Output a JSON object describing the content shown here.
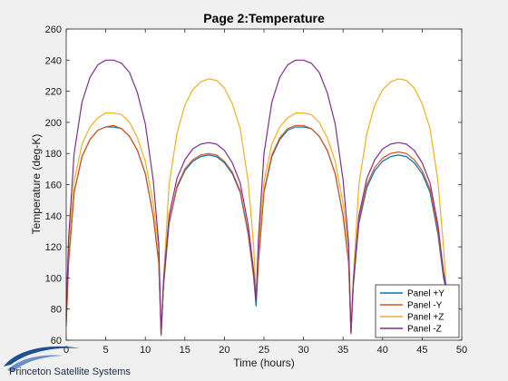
{
  "logo": {
    "text": "Princeton Satellite Systems",
    "color": "#1f4f8f"
  },
  "chart_data": {
    "type": "line",
    "title": "Page 2:Temperature",
    "xlabel": "Time (hours)",
    "ylabel": "Temperature (deg-K)",
    "xlim": [
      0,
      50
    ],
    "ylim": [
      60,
      260
    ],
    "xticks": [
      0,
      5,
      10,
      15,
      20,
      25,
      30,
      35,
      40,
      45,
      50
    ],
    "yticks": [
      60,
      80,
      100,
      120,
      140,
      160,
      180,
      200,
      220,
      240,
      260
    ],
    "grid": false,
    "legend_position": "bottom-right",
    "series": [
      {
        "name": "Panel +Y",
        "color": "#0072BD",
        "x": [
          0,
          0.3,
          1,
          2,
          3,
          4,
          5,
          6,
          7,
          8,
          9,
          10,
          11,
          11.7,
          12,
          12.3,
          13,
          14,
          15,
          16,
          17,
          18,
          19,
          20,
          21,
          22,
          23,
          23.7,
          24,
          24.3,
          25,
          26,
          27,
          28,
          29,
          30,
          31,
          32,
          33,
          34,
          35,
          35.7,
          36,
          36.3,
          37,
          38,
          39,
          40,
          41,
          42,
          43,
          44,
          45,
          46,
          47,
          47.7,
          48
        ],
        "y": [
          72,
          110,
          155,
          178,
          189,
          195,
          197,
          197,
          196,
          191,
          182,
          167,
          140,
          110,
          64,
          95,
          135,
          158,
          169,
          175,
          178,
          179,
          178,
          174,
          167,
          155,
          128,
          100,
          82,
          110,
          155,
          178,
          189,
          195,
          197,
          197,
          196,
          191,
          182,
          167,
          140,
          110,
          65,
          95,
          135,
          158,
          169,
          175,
          178,
          179,
          178,
          174,
          167,
          155,
          128,
          100,
          93
        ]
      },
      {
        "name": "Panel -Y",
        "color": "#D95319",
        "x": [
          0,
          0.3,
          1,
          2,
          3,
          4,
          5,
          6,
          7,
          8,
          9,
          10,
          11,
          11.7,
          12,
          12.3,
          13,
          14,
          15,
          16,
          17,
          18,
          19,
          20,
          21,
          22,
          23,
          23.7,
          24,
          24.3,
          25,
          26,
          27,
          28,
          29,
          30,
          31,
          32,
          33,
          34,
          35,
          35.7,
          36,
          36.3,
          37,
          38,
          39,
          40,
          41,
          42,
          43,
          44,
          45,
          46,
          47,
          47.7,
          48
        ],
        "y": [
          69,
          110,
          155,
          178,
          189,
          195,
          197,
          198,
          196,
          191,
          182,
          167,
          140,
          110,
          63,
          96,
          136,
          159,
          170,
          176,
          179,
          180,
          179,
          175,
          168,
          156,
          129,
          101,
          85,
          111,
          156,
          179,
          190,
          196,
          198,
          198,
          196,
          191,
          182,
          167,
          140,
          110,
          64,
          96,
          137,
          160,
          171,
          177,
          180,
          181,
          180,
          176,
          169,
          157,
          130,
          102,
          95
        ]
      },
      {
        "name": "Panel +Z",
        "color": "#EDB120",
        "x": [
          0,
          0.3,
          1,
          2,
          3,
          4,
          5,
          6,
          7,
          8,
          9,
          10,
          11,
          11.7,
          12,
          12.3,
          13,
          14,
          15,
          16,
          17,
          18,
          19,
          20,
          21,
          22,
          23,
          23.7,
          24,
          24.3,
          25,
          26,
          27,
          28,
          29,
          30,
          31,
          32,
          33,
          34,
          35,
          35.7,
          36,
          36.3,
          37,
          38,
          39,
          40,
          41,
          42,
          43,
          44,
          45,
          46,
          47,
          47.7,
          48
        ],
        "y": [
          85,
          120,
          162,
          186,
          197,
          203,
          206,
          206,
          205,
          200,
          190,
          175,
          148,
          118,
          65,
          100,
          160,
          193,
          211,
          221,
          226,
          228,
          227,
          222,
          212,
          196,
          162,
          120,
          88,
          120,
          162,
          186,
          197,
          203,
          206,
          206,
          205,
          200,
          190,
          175,
          148,
          118,
          66,
          100,
          160,
          193,
          211,
          221,
          226,
          228,
          227,
          222,
          212,
          196,
          162,
          120,
          96
        ]
      },
      {
        "name": "Panel -Z",
        "color": "#7E2F8E",
        "x": [
          0,
          0.3,
          1,
          2,
          3,
          4,
          5,
          6,
          7,
          8,
          9,
          10,
          11,
          11.7,
          12,
          12.3,
          13,
          14,
          15,
          16,
          17,
          18,
          19,
          20,
          21,
          22,
          23,
          23.7,
          24,
          24.3,
          25,
          26,
          27,
          28,
          29,
          30,
          31,
          32,
          33,
          34,
          35,
          35.7,
          36,
          36.3,
          37,
          38,
          39,
          40,
          41,
          42,
          43,
          44,
          45,
          46,
          47,
          47.7,
          48
        ],
        "y": [
          75,
          125,
          180,
          213,
          229,
          237,
          240,
          240,
          238,
          232,
          219,
          199,
          163,
          122,
          64,
          98,
          140,
          164,
          176,
          183,
          186,
          187,
          186,
          182,
          174,
          161,
          134,
          104,
          85,
          125,
          180,
          213,
          229,
          237,
          240,
          240,
          238,
          232,
          219,
          199,
          163,
          122,
          65,
          98,
          140,
          164,
          176,
          183,
          186,
          187,
          186,
          182,
          174,
          161,
          134,
          104,
          95
        ]
      }
    ]
  }
}
